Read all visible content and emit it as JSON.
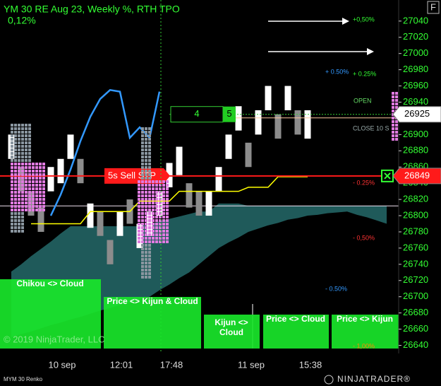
{
  "header": {
    "title": "YM 30 RE  Aug 23, Weekly %, RTH TPO",
    "change": "0,12%",
    "panel_button": "F"
  },
  "price_axis": {
    "ylim": [
      26630,
      27066
    ],
    "ticks": [
      27040,
      27020,
      27000,
      26980,
      26960,
      26940,
      26920,
      26900,
      26880,
      26860,
      26840,
      26820,
      26800,
      26780,
      26760,
      26740,
      26720,
      26700,
      26680,
      26660,
      26640
    ]
  },
  "time_axis": {
    "labels": [
      "10 sep",
      "12:01",
      "17:48",
      "11 sep",
      "15:38"
    ]
  },
  "bricks": {
    "up_color": "#ffffff",
    "down_color": "#8c8c8c",
    "values": [
      [
        26870,
        26900
      ],
      [
        26860,
        26830
      ],
      [
        26830,
        26800
      ],
      [
        26810,
        26780
      ],
      [
        26830,
        26860
      ],
      [
        26840,
        26870
      ],
      [
        26870,
        26900
      ],
      [
        26870,
        26840
      ],
      [
        26785,
        26815
      ],
      [
        26805,
        26775
      ],
      [
        26770,
        26740
      ],
      [
        26775,
        26805
      ],
      [
        26820,
        26790
      ],
      [
        26760,
        26790
      ],
      [
        26775,
        26805
      ],
      [
        26800,
        26830
      ],
      [
        26835,
        26865
      ],
      [
        26850,
        26885
      ],
      [
        26840,
        26810
      ],
      [
        26830,
        26800
      ],
      [
        26800,
        26830
      ],
      [
        26830,
        26860
      ],
      [
        26870,
        26900
      ],
      [
        26905,
        26935
      ],
      [
        26890,
        26860
      ],
      [
        26900,
        26930
      ],
      [
        26930,
        26960
      ],
      [
        26925,
        26895
      ],
      [
        26930,
        26960
      ],
      [
        26930,
        26900
      ],
      [
        26895,
        26930
      ]
    ]
  },
  "tenkan": {
    "color": "#3399ff",
    "values": [
      null,
      null,
      null,
      null,
      26800,
      26826,
      26857,
      26892,
      26922,
      26944,
      26955,
      26953,
      26896,
      26909,
      26896,
      26953
    ]
  },
  "kijun": {
    "color": "#ffff00",
    "values": [
      null,
      null,
      26790,
      26790,
      26790,
      26790,
      26790,
      26790,
      26805,
      26805,
      26805,
      26805,
      26805,
      26818,
      26818,
      26818,
      26818,
      26830,
      26830,
      26830,
      26830,
      26830,
      26830,
      26830,
      26835,
      26835,
      26835,
      26848,
      26848,
      26848,
      26848
    ]
  },
  "cloud": {
    "color": "#1f5a5a",
    "upper": [
      26731,
      26740,
      26750,
      26759,
      26768,
      26778,
      26787,
      26787,
      26787,
      26787,
      26787,
      26787,
      26787,
      26787,
      26790,
      26793,
      26796,
      26799,
      26802,
      26805,
      26805,
      26815,
      26815,
      26815,
      26812,
      26812,
      26812,
      26812,
      26812,
      26812,
      26812,
      26812,
      26812,
      26812,
      26812,
      26812,
      26812,
      26812,
      26812
    ],
    "lower": [
      26650,
      26654,
      26657,
      26661,
      26665,
      26668,
      26672,
      26675,
      26679,
      26683,
      26686,
      26690,
      26693,
      26697,
      26700,
      26708,
      26715,
      26723,
      26730,
      26740,
      26750,
      26760,
      26767,
      26773,
      26780,
      26784,
      26788,
      26791,
      26795,
      26797,
      26800,
      26801,
      26803,
      26804,
      26805,
      26801,
      26798,
      26794,
      26790
    ]
  },
  "levels": {
    "last_price": 26925,
    "sell_stop": 26849,
    "reference": 26812
  },
  "order": {
    "quantity": 4,
    "fill": 5,
    "label": "5s  Sell STP"
  },
  "level_labels": {
    "up_050_green": "+0,50%",
    "up_050_blue": "+ 0.50%",
    "up_025": "+ 0.25%",
    "open": "OPEN",
    "close": "CLOSE 10 S",
    "down_025": "- 0.25%",
    "down_050_red": "- 0,50%",
    "down_050_blue": "- 0.50%",
    "down_100": "- 1,00%"
  },
  "signals": [
    "Chikou <> Cloud",
    "Price <> Kijun & Cloud",
    "Kijun <> Cloud",
    "Price <> Cloud",
    "Price <> Kijun"
  ],
  "footer": {
    "watermark": "© 2019 NinjaTrader, LLC",
    "instrument": "MYM 30 Renko",
    "logo": "NINJATRADER®"
  }
}
